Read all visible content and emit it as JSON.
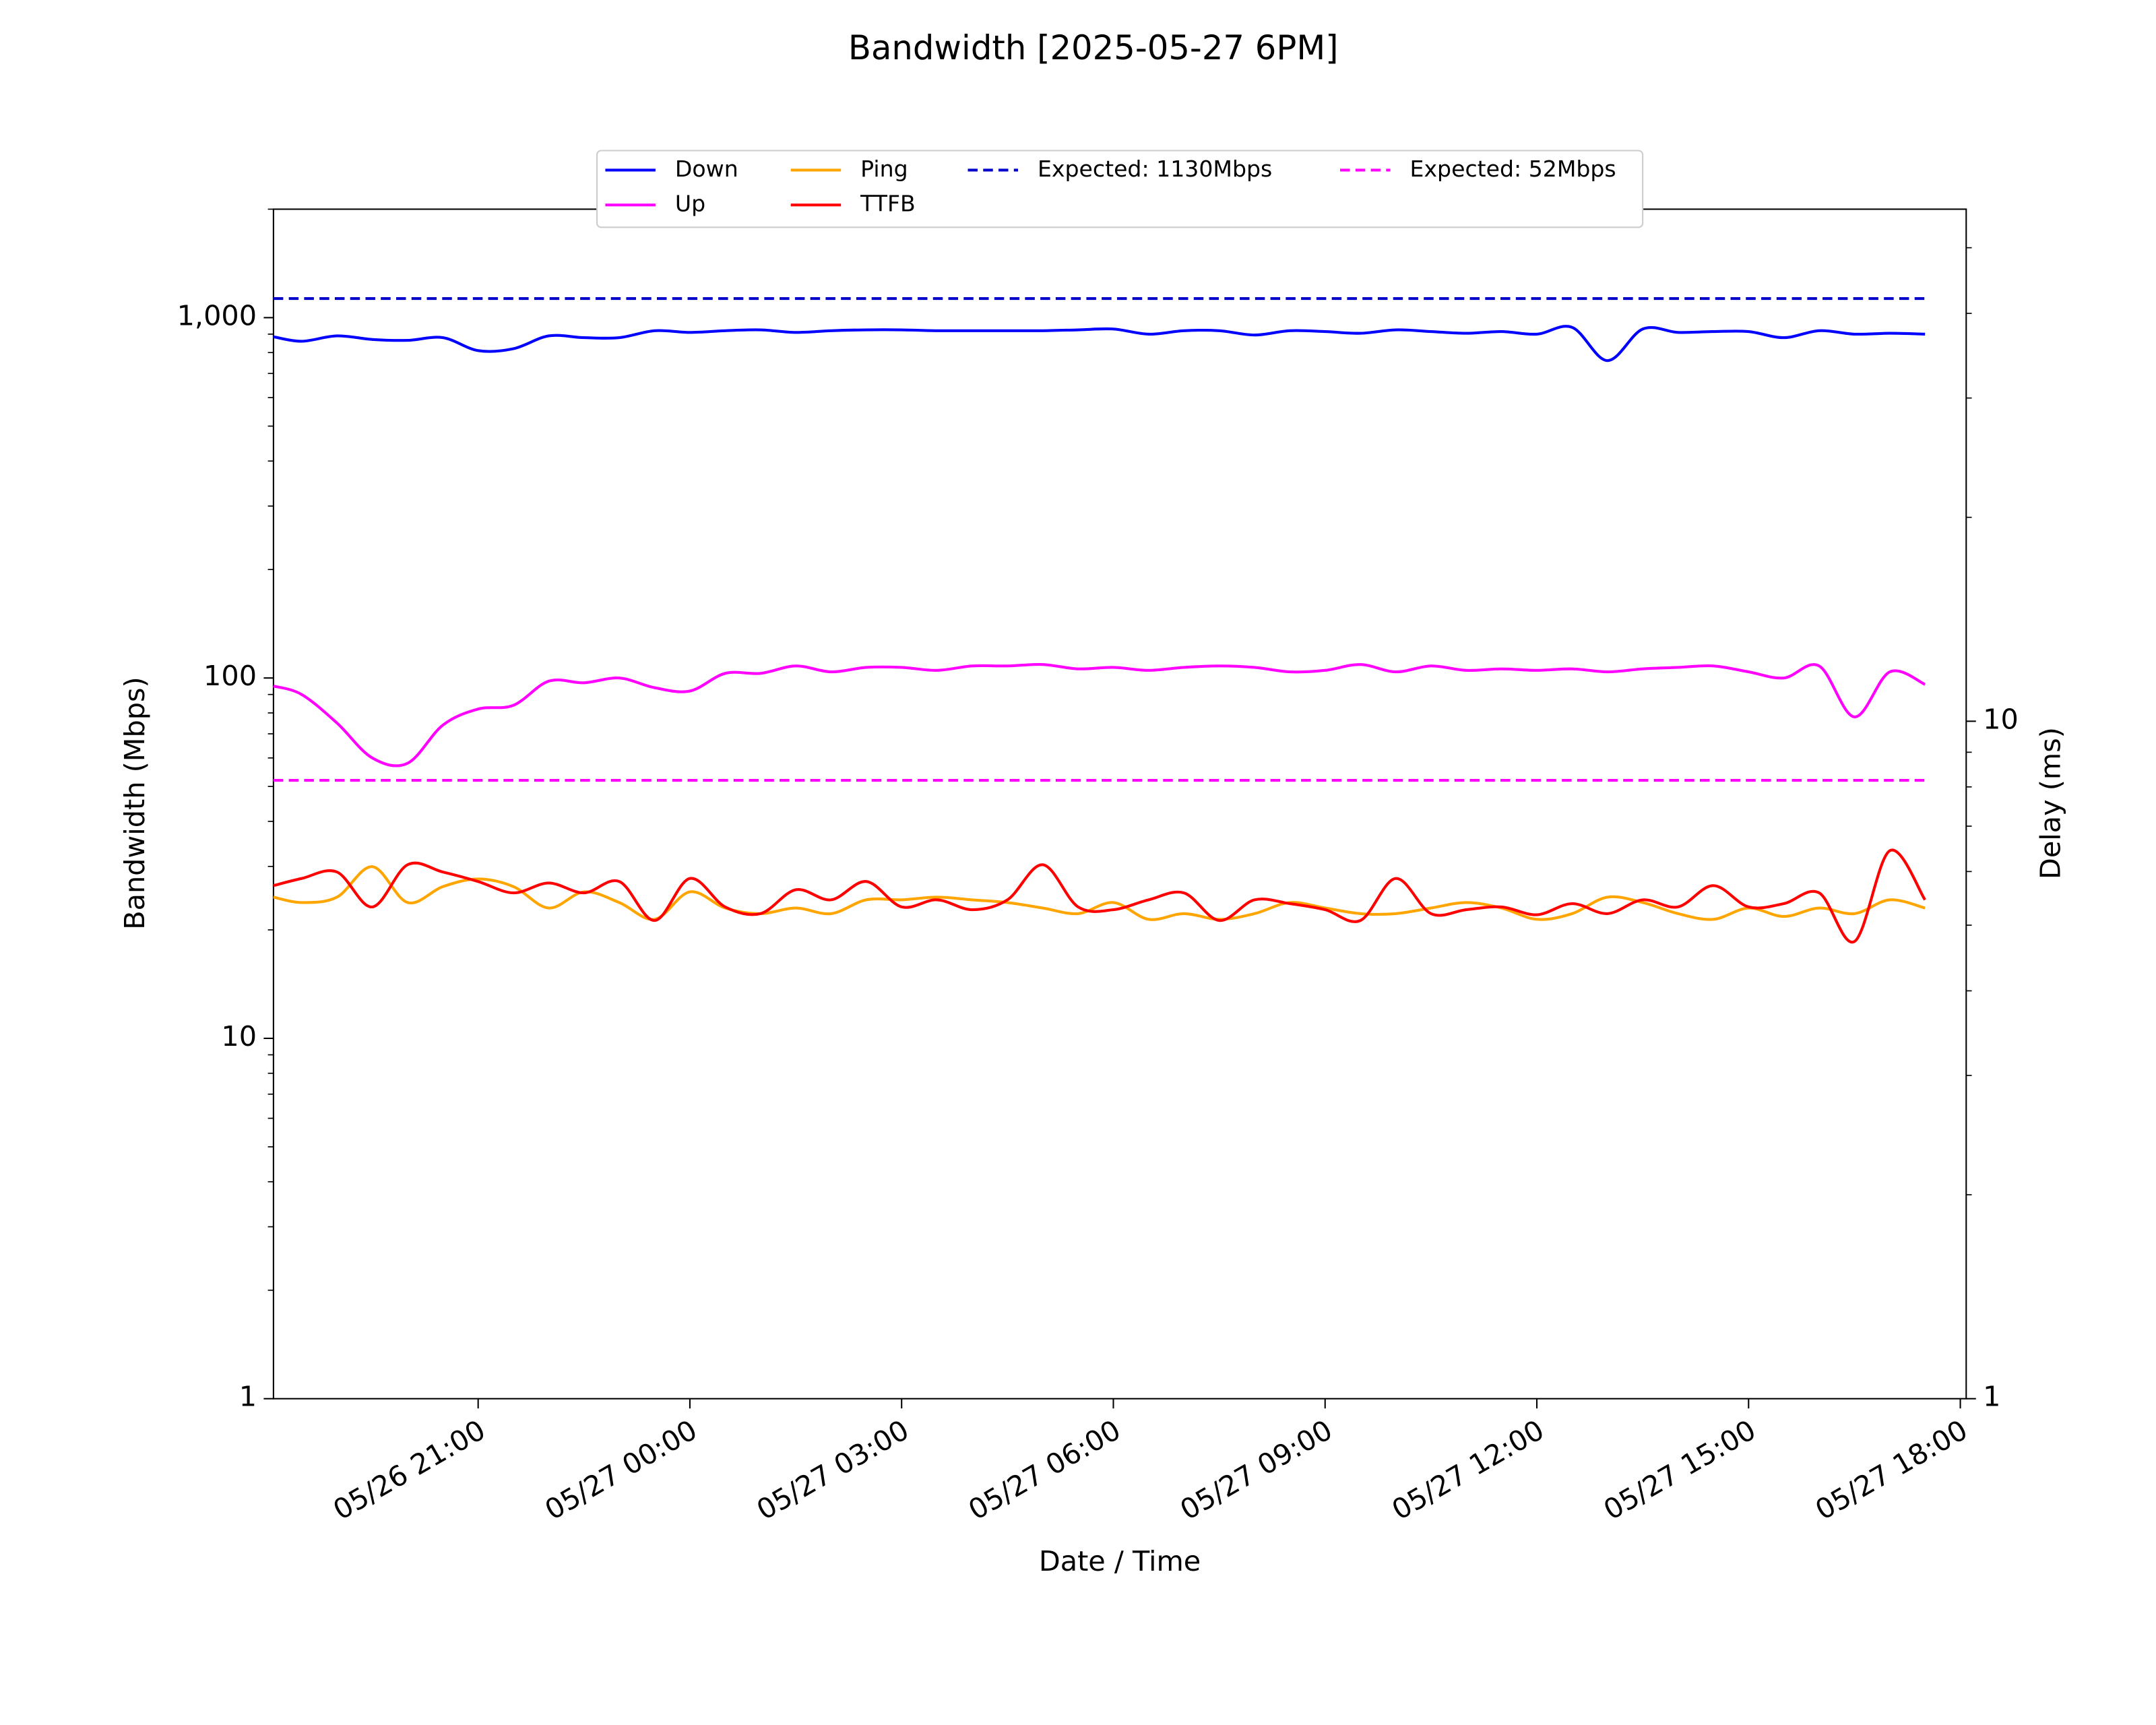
{
  "chart_data": {
    "type": "line",
    "title": "Bandwidth [2025-05-27 6PM]",
    "xlabel": "Date / Time",
    "ylabel": "Bandwidth (Mbps)",
    "y2label": "Delay (ms)",
    "x": [
      "05/26 18:06",
      "05/26 18:30",
      "05/26 19:00",
      "05/26 19:30",
      "05/26 20:00",
      "05/26 20:30",
      "05/26 21:00",
      "05/26 21:30",
      "05/26 22:00",
      "05/26 22:30",
      "05/26 23:00",
      "05/26 23:30",
      "05/27 00:00",
      "05/27 00:30",
      "05/27 01:00",
      "05/27 01:30",
      "05/27 02:00",
      "05/27 02:30",
      "05/27 03:00",
      "05/27 03:30",
      "05/27 04:00",
      "05/27 04:30",
      "05/27 05:00",
      "05/27 05:30",
      "05/27 06:00",
      "05/27 06:30",
      "05/27 07:00",
      "05/27 07:30",
      "05/27 08:00",
      "05/27 08:30",
      "05/27 09:00",
      "05/27 09:30",
      "05/27 10:00",
      "05/27 10:30",
      "05/27 11:00",
      "05/27 11:30",
      "05/27 12:00",
      "05/27 12:30",
      "05/27 13:00",
      "05/27 13:30",
      "05/27 14:00",
      "05/27 14:30",
      "05/27 15:00",
      "05/27 15:30",
      "05/27 16:00",
      "05/27 16:30",
      "05/27 17:00",
      "05/27 17:30"
    ],
    "xlim": [
      "05/26 18:06",
      "05/27 18:05"
    ],
    "xticks": [
      "05/26 21:00",
      "05/27 00:00",
      "05/27 03:00",
      "05/27 06:00",
      "05/27 09:00",
      "05/27 12:00",
      "05/27 15:00",
      "05/27 18:00"
    ],
    "ylim": [
      1,
      2000
    ],
    "yticks": [
      1,
      10,
      100,
      {
        "value": 1000,
        "label": "1,000"
      }
    ],
    "log_y": true,
    "y2lim": [
      1,
      57
    ],
    "y2ticks": [
      1,
      10
    ],
    "log_y2": true,
    "minor_ticks": true,
    "legend": "upper center",
    "series": [
      {
        "name": "Down",
        "color": "#0000ff",
        "values": [
          885,
          860,
          890,
          870,
          865,
          880,
          810,
          820,
          890,
          880,
          880,
          920,
          910,
          920,
          925,
          910,
          920,
          925,
          925,
          920,
          920,
          920,
          920,
          925,
          930,
          900,
          920,
          920,
          895,
          920,
          915,
          905,
          925,
          915,
          905,
          915,
          900,
          940,
          760,
          930,
          910,
          915,
          915,
          880,
          920,
          900,
          905,
          900
        ]
      },
      {
        "name": "Up",
        "color": "#ff00ff",
        "values": [
          95,
          90,
          75,
          60,
          58,
          74,
          82,
          84,
          98,
          97,
          100,
          94,
          92,
          103,
          103,
          108,
          104,
          107,
          107,
          105,
          108,
          108,
          109,
          106,
          107,
          105,
          107,
          108,
          107,
          104,
          105,
          109,
          104,
          108,
          105,
          106,
          105,
          106,
          104,
          106,
          107,
          108,
          104,
          100,
          108,
          78,
          104,
          96
        ]
      },
      {
        "name": "Ping",
        "color": "#ffa500",
        "axis": "y2",
        "values": [
          5.5,
          5.4,
          5.5,
          6.1,
          5.4,
          5.7,
          5.85,
          5.7,
          5.3,
          5.6,
          5.4,
          5.1,
          5.6,
          5.3,
          5.2,
          5.3,
          5.2,
          5.45,
          5.45,
          5.5,
          5.45,
          5.4,
          5.3,
          5.2,
          5.4,
          5.1,
          5.2,
          5.1,
          5.2,
          5.4,
          5.3,
          5.2,
          5.2,
          5.3,
          5.4,
          5.3,
          5.1,
          5.2,
          5.5,
          5.4,
          5.2,
          5.1,
          5.3,
          5.15,
          5.3,
          5.2,
          5.45,
          5.3
        ]
      },
      {
        "name": "TTFB",
        "color": "#ff0000",
        "axis": "y2",
        "values": [
          5.72,
          5.86,
          5.99,
          5.32,
          6.14,
          5.99,
          5.8,
          5.58,
          5.77,
          5.58,
          5.8,
          5.08,
          5.86,
          5.32,
          5.2,
          5.64,
          5.45,
          5.8,
          5.32,
          5.45,
          5.27,
          5.45,
          6.14,
          5.32,
          5.27,
          5.45,
          5.58,
          5.08,
          5.45,
          5.38,
          5.27,
          5.08,
          5.86,
          5.2,
          5.27,
          5.32,
          5.18,
          5.38,
          5.2,
          5.45,
          5.32,
          5.72,
          5.32,
          5.38,
          5.58,
          4.73,
          6.44,
          5.45
        ]
      }
    ],
    "reference_lines": [
      {
        "name": "Expected: 1130Mbps",
        "color": "#0000cd",
        "value": 1130
      },
      {
        "name": "Expected: 52Mbps",
        "color": "#ff00ff",
        "value": 52
      }
    ]
  }
}
